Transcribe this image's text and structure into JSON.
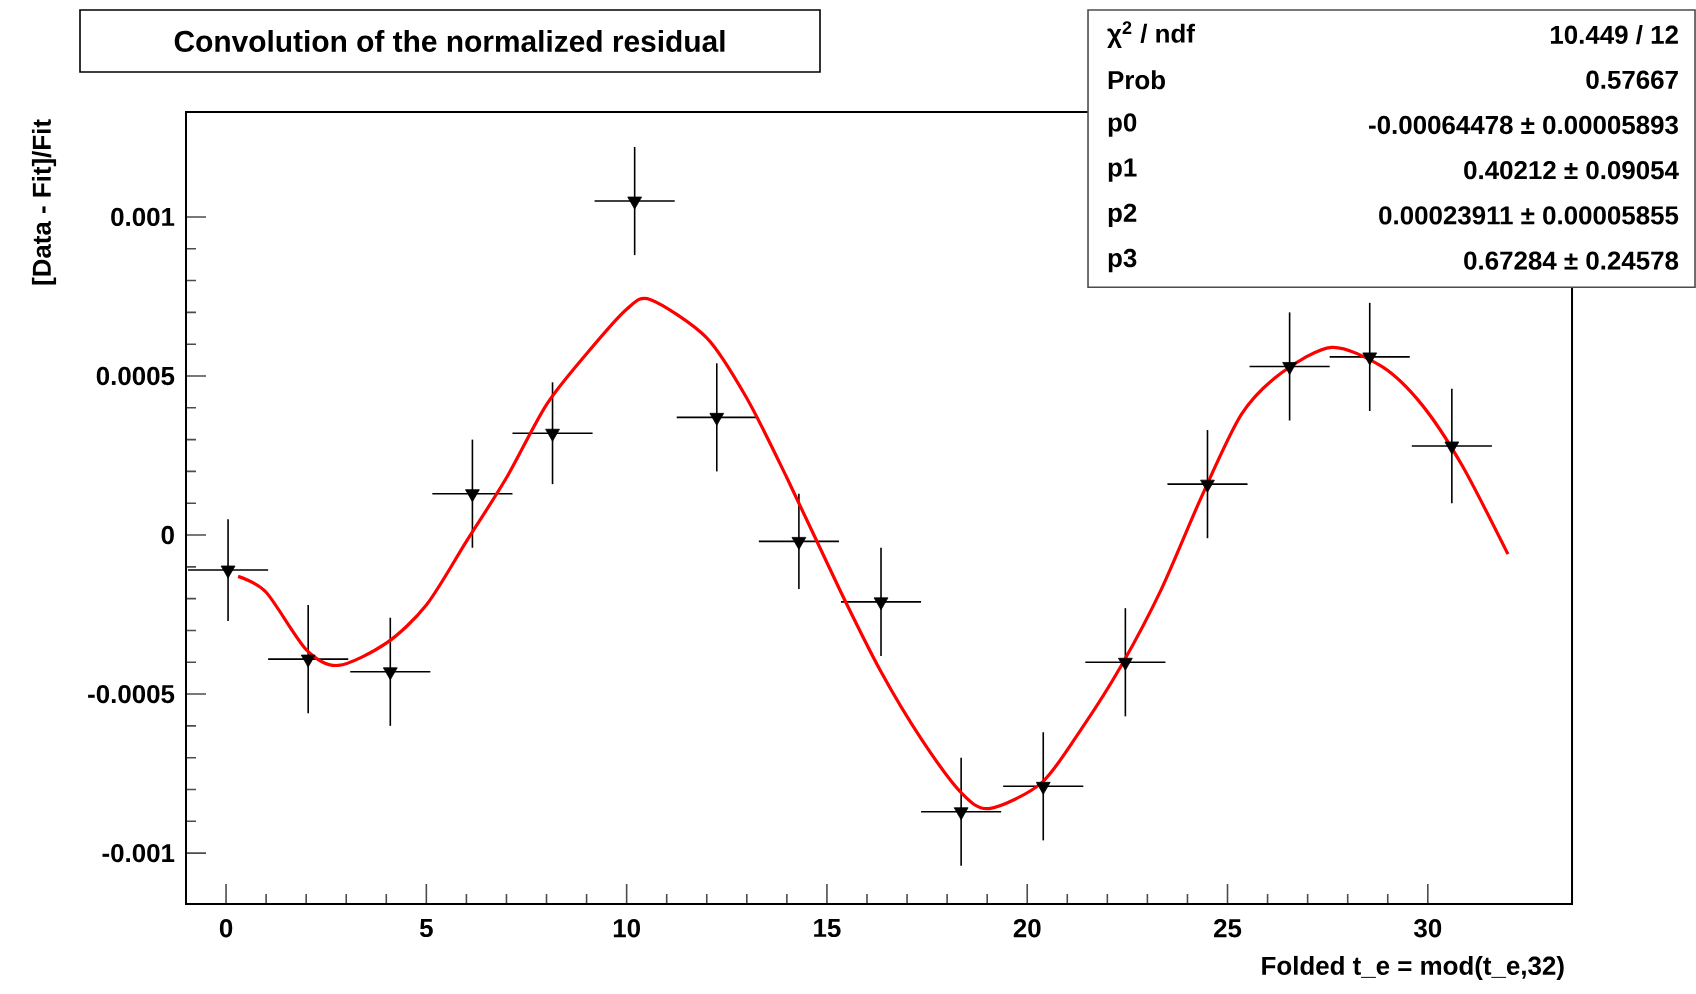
{
  "chart_data": {
    "type": "scatter",
    "title": "Convolution of the normalized residual",
    "xlabel": "Folded t_e = mod(t_e,32)",
    "ylabel": "[Data - Fit]/Fit",
    "xlim": [
      -1,
      33.6
    ],
    "ylim": [
      -0.00116,
      0.00133
    ],
    "xticks": [
      0,
      5,
      10,
      15,
      20,
      25,
      30
    ],
    "yticks": [
      -0.001,
      -0.0005,
      0,
      0.0005,
      0.001
    ],
    "grid": false,
    "series": [
      {
        "marker": "triangle",
        "color": "#000000",
        "x": [
          0.05,
          2.05,
          4.1,
          6.15,
          8.15,
          10.2,
          12.25,
          14.3,
          16.35,
          18.35,
          20.4,
          22.45,
          24.5,
          26.55,
          28.55,
          30.6
        ],
        "values": [
          -0.00011,
          -0.00039,
          -0.00043,
          0.00013,
          0.00032,
          0.00105,
          0.00037,
          -2e-05,
          -0.00021,
          -0.00087,
          -0.00079,
          -0.0004,
          0.00016,
          0.00053,
          0.00056,
          0.00028
        ],
        "errors": [
          0.00016,
          0.00017,
          0.00017,
          0.00017,
          0.00016,
          0.00017,
          0.00017,
          0.00015,
          0.00017,
          0.00017,
          0.00017,
          0.00017,
          0.00017,
          0.00017,
          0.00017,
          0.00018
        ],
        "xerrors": [
          1,
          1,
          1,
          1,
          1,
          1,
          1,
          1,
          1,
          1,
          1,
          1,
          1,
          1,
          1,
          1
        ]
      },
      {
        "type": "line",
        "line_style": "solid",
        "color": "#ff0000",
        "x": [
          0.3,
          1,
          2,
          2.8,
          4,
          5,
          6,
          7,
          8,
          9,
          10,
          10.6,
          12,
          13,
          14,
          15.35,
          16.35,
          17.35,
          18.35,
          19.05,
          20.35,
          21.35,
          22.35,
          23.35,
          24.35,
          25.35,
          26.35,
          27.6,
          28.85,
          29.85,
          30.85,
          32
        ],
        "values": [
          -0.00013,
          -0.00018,
          -0.00036,
          -0.00041,
          -0.00034,
          -0.00022,
          -2e-05,
          0.00018,
          0.00041,
          0.00057,
          0.00071,
          0.00074,
          0.00062,
          0.00043,
          0.00018,
          -0.00018,
          -0.00043,
          -0.00064,
          -0.00081,
          -0.00086,
          -0.00078,
          -0.00061,
          -0.00041,
          -0.00017,
          0.00012,
          0.00038,
          0.00051,
          0.00059,
          0.00053,
          0.00041,
          0.00022,
          -6e-05
        ]
      }
    ],
    "annotations": [
      "χ$^{2}$ / ndf",
      "10.449 / 12",
      "Prob",
      "0.57667",
      "p0",
      "-0.00064478 ± 0.00005893",
      "p1",
      "0.40212 ± 0.09054",
      "p2",
      "0.00023911 ± 0.00005855",
      "p3",
      "0.67284 ± 0.24578"
    ]
  }
}
